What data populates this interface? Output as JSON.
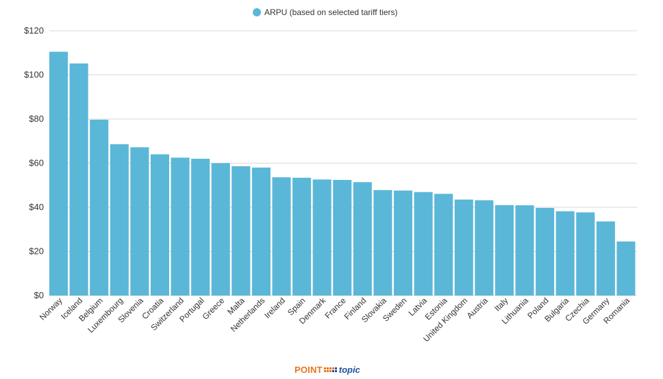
{
  "chart_data": {
    "type": "bar",
    "categories": [
      "Norway",
      "Iceland",
      "Belgium",
      "Luxembourg",
      "Slovenia",
      "Croatia",
      "Switzerland",
      "Portugal",
      "Greece",
      "Malta",
      "Netherlands",
      "Ireland",
      "Spain",
      "Denmark",
      "France",
      "Finland",
      "Slovakia",
      "Sweden",
      "Latvia",
      "Estonia",
      "United Kingdom",
      "Austria",
      "Italy",
      "Lithuania",
      "Poland",
      "Bulgaria",
      "Czechia",
      "Germany",
      "Romania"
    ],
    "series": [
      {
        "name": "ARPU (based on selected tariff tiers)",
        "values": [
          110.5,
          105.2,
          79.7,
          68.6,
          67.2,
          64.0,
          62.5,
          62.0,
          60.0,
          58.6,
          58.0,
          53.6,
          53.4,
          52.6,
          52.4,
          51.4,
          47.8,
          47.6,
          46.9,
          46.1,
          43.5,
          43.2,
          41.0,
          40.9,
          39.7,
          38.2,
          37.7,
          33.6,
          24.5
        ]
      }
    ],
    "ylim": [
      0,
      120
    ],
    "yticks": [
      "$0",
      "$20",
      "$40",
      "$60",
      "$80",
      "$100",
      "$120"
    ],
    "ytick_values": [
      0,
      20,
      40,
      60,
      80,
      100,
      120
    ],
    "grid": true,
    "legend_position": "top-center",
    "colors": {
      "bar": "#5bb7d8",
      "legend_marker": "#5bb7d8"
    }
  },
  "branding": {
    "logo_part1": "POINT",
    "logo_part2": "topic",
    "colors": {
      "orange": "#e8731e",
      "blue": "#1f4f9c"
    }
  }
}
